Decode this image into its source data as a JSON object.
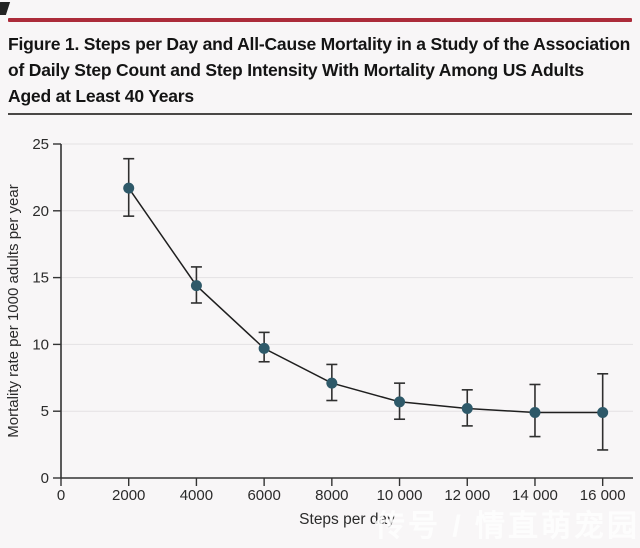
{
  "page": {
    "background": "#f8f6f7"
  },
  "figure": {
    "rule_color": "#ac2b3a",
    "title_lines": [
      "Figure 1. Steps per Day and All-Cause Mortality in a Study of the Association",
      "of Daily Step Count and Step Intensity With Mortality Among US Adults",
      "Aged at Least 40 Years"
    ]
  },
  "watermark": {
    "text": "传号 / 情直萌宠园"
  },
  "chart_data": {
    "type": "line",
    "title": "",
    "xlabel": "Steps per day",
    "ylabel": "Mortality rate per 1000 adults per year",
    "x": [
      2000,
      4000,
      6000,
      8000,
      10000,
      12000,
      14000,
      16000
    ],
    "series": [
      {
        "name": "All-cause mortality rate",
        "values": [
          21.7,
          14.4,
          9.7,
          7.1,
          5.7,
          5.2,
          4.9,
          4.9
        ],
        "ci_low": [
          19.6,
          13.1,
          8.7,
          5.8,
          4.4,
          3.9,
          3.1,
          2.1
        ],
        "ci_high": [
          23.9,
          15.8,
          10.9,
          8.5,
          7.1,
          6.6,
          7.0,
          7.8
        ]
      }
    ],
    "xlim": [
      0,
      16900
    ],
    "ylim": [
      0,
      25
    ],
    "x_ticks": [
      0,
      2000,
      4000,
      6000,
      8000,
      10000,
      12000,
      14000,
      16000
    ],
    "x_tick_labels": [
      "0",
      "2000",
      "4000",
      "6000",
      "8000",
      "10 000",
      "12 000",
      "14 000",
      "16 000"
    ],
    "y_ticks": [
      0,
      5,
      10,
      15,
      20,
      25
    ],
    "grid": "horizontal",
    "legend": "none",
    "point_color": "#2e5969",
    "line_color": "#1f1f1f",
    "error_bar_color": "#2f2f2f",
    "axis_color": "#333333",
    "gridline_color": "#e4e1e3",
    "tick_label_color": "#2b2b2b"
  }
}
